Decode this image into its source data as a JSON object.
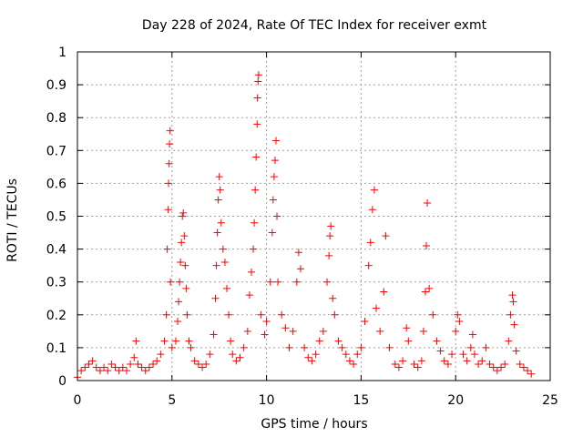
{
  "chart_data": {
    "type": "scatter",
    "title": "Day 228 of 2024, Rate Of TEC Index for receiver exmt",
    "xlabel": "GPS time / hours",
    "ylabel": "ROTI / TECUs",
    "xlim": [
      0,
      25
    ],
    "ylim": [
      0,
      1
    ],
    "xticks": [
      "0",
      "5",
      "10",
      "15",
      "20",
      "25"
    ],
    "yticks": [
      "0",
      "0.1",
      "0.2",
      "0.3",
      "0.4",
      "0.5",
      "0.6",
      "0.7",
      "0.8",
      "0.9",
      "1"
    ],
    "grid": true,
    "marker": "+",
    "series": [
      {
        "color": "#ff0000",
        "points": [
          [
            0.0,
            0.01
          ],
          [
            0.2,
            0.03
          ],
          [
            0.4,
            0.04
          ],
          [
            0.6,
            0.05
          ],
          [
            0.8,
            0.06
          ],
          [
            1.0,
            0.04
          ],
          [
            1.2,
            0.03
          ],
          [
            1.4,
            0.04
          ],
          [
            1.6,
            0.03
          ],
          [
            1.8,
            0.05
          ],
          [
            2.0,
            0.04
          ],
          [
            2.2,
            0.03
          ],
          [
            2.4,
            0.04
          ],
          [
            2.6,
            0.03
          ],
          [
            2.8,
            0.05
          ],
          [
            3.0,
            0.07
          ],
          [
            3.1,
            0.12
          ],
          [
            3.2,
            0.05
          ],
          [
            3.4,
            0.04
          ],
          [
            3.6,
            0.03
          ],
          [
            3.8,
            0.04
          ],
          [
            4.0,
            0.05
          ],
          [
            4.2,
            0.06
          ],
          [
            4.4,
            0.08
          ],
          [
            4.6,
            0.12
          ],
          [
            4.7,
            0.2
          ],
          [
            4.75,
            0.4
          ],
          [
            4.8,
            0.52
          ],
          [
            4.82,
            0.6
          ],
          [
            4.85,
            0.66
          ],
          [
            4.87,
            0.72
          ],
          [
            4.9,
            0.76
          ],
          [
            4.92,
            0.3
          ],
          [
            5.0,
            0.1
          ],
          [
            5.2,
            0.12
          ],
          [
            5.3,
            0.18
          ],
          [
            5.35,
            0.24
          ],
          [
            5.4,
            0.3
          ],
          [
            5.45,
            0.36
          ],
          [
            5.5,
            0.42
          ],
          [
            5.55,
            0.5
          ],
          [
            5.6,
            0.51
          ],
          [
            5.65,
            0.44
          ],
          [
            5.7,
            0.35
          ],
          [
            5.75,
            0.28
          ],
          [
            5.8,
            0.2
          ],
          [
            5.9,
            0.12
          ],
          [
            6.0,
            0.1
          ],
          [
            6.2,
            0.06
          ],
          [
            6.4,
            0.05
          ],
          [
            6.6,
            0.04
          ],
          [
            6.8,
            0.05
          ],
          [
            7.0,
            0.08
          ],
          [
            7.2,
            0.14
          ],
          [
            7.3,
            0.25
          ],
          [
            7.35,
            0.35
          ],
          [
            7.4,
            0.45
          ],
          [
            7.45,
            0.55
          ],
          [
            7.5,
            0.62
          ],
          [
            7.55,
            0.58
          ],
          [
            7.6,
            0.48
          ],
          [
            7.7,
            0.4
          ],
          [
            7.8,
            0.36
          ],
          [
            7.9,
            0.28
          ],
          [
            8.0,
            0.2
          ],
          [
            8.1,
            0.12
          ],
          [
            8.2,
            0.08
          ],
          [
            8.4,
            0.06
          ],
          [
            8.6,
            0.07
          ],
          [
            8.8,
            0.1
          ],
          [
            9.0,
            0.15
          ],
          [
            9.1,
            0.26
          ],
          [
            9.2,
            0.33
          ],
          [
            9.3,
            0.4
          ],
          [
            9.35,
            0.48
          ],
          [
            9.4,
            0.58
          ],
          [
            9.45,
            0.68
          ],
          [
            9.5,
            0.78
          ],
          [
            9.52,
            0.86
          ],
          [
            9.55,
            0.91
          ],
          [
            9.58,
            0.93
          ],
          [
            9.7,
            0.2
          ],
          [
            9.9,
            0.14
          ],
          [
            10.0,
            0.18
          ],
          [
            10.2,
            0.3
          ],
          [
            10.3,
            0.45
          ],
          [
            10.35,
            0.55
          ],
          [
            10.4,
            0.62
          ],
          [
            10.45,
            0.67
          ],
          [
            10.5,
            0.73
          ],
          [
            10.55,
            0.5
          ],
          [
            10.6,
            0.3
          ],
          [
            10.8,
            0.2
          ],
          [
            11.0,
            0.16
          ],
          [
            11.2,
            0.1
          ],
          [
            11.4,
            0.15
          ],
          [
            11.6,
            0.3
          ],
          [
            11.7,
            0.39
          ],
          [
            11.8,
            0.34
          ],
          [
            12.0,
            0.1
          ],
          [
            12.2,
            0.07
          ],
          [
            12.4,
            0.06
          ],
          [
            12.6,
            0.08
          ],
          [
            12.8,
            0.12
          ],
          [
            13.0,
            0.15
          ],
          [
            13.2,
            0.3
          ],
          [
            13.3,
            0.38
          ],
          [
            13.35,
            0.44
          ],
          [
            13.4,
            0.47
          ],
          [
            13.5,
            0.25
          ],
          [
            13.6,
            0.2
          ],
          [
            13.8,
            0.12
          ],
          [
            14.0,
            0.1
          ],
          [
            14.2,
            0.08
          ],
          [
            14.4,
            0.06
          ],
          [
            14.6,
            0.05
          ],
          [
            14.8,
            0.08
          ],
          [
            15.0,
            0.1
          ],
          [
            15.2,
            0.18
          ],
          [
            15.4,
            0.35
          ],
          [
            15.5,
            0.42
          ],
          [
            15.6,
            0.52
          ],
          [
            15.7,
            0.58
          ],
          [
            15.8,
            0.22
          ],
          [
            16.0,
            0.15
          ],
          [
            16.2,
            0.27
          ],
          [
            16.3,
            0.44
          ],
          [
            16.5,
            0.1
          ],
          [
            16.8,
            0.05
          ],
          [
            17.0,
            0.04
          ],
          [
            17.2,
            0.06
          ],
          [
            17.4,
            0.16
          ],
          [
            17.5,
            0.12
          ],
          [
            17.8,
            0.05
          ],
          [
            18.0,
            0.04
          ],
          [
            18.2,
            0.06
          ],
          [
            18.3,
            0.15
          ],
          [
            18.4,
            0.27
          ],
          [
            18.45,
            0.41
          ],
          [
            18.5,
            0.54
          ],
          [
            18.6,
            0.28
          ],
          [
            18.8,
            0.2
          ],
          [
            19.0,
            0.12
          ],
          [
            19.2,
            0.09
          ],
          [
            19.4,
            0.06
          ],
          [
            19.6,
            0.05
          ],
          [
            19.8,
            0.08
          ],
          [
            20.0,
            0.15
          ],
          [
            20.1,
            0.2
          ],
          [
            20.2,
            0.18
          ],
          [
            20.4,
            0.08
          ],
          [
            20.6,
            0.06
          ],
          [
            20.8,
            0.1
          ],
          [
            20.9,
            0.14
          ],
          [
            21.0,
            0.08
          ],
          [
            21.2,
            0.05
          ],
          [
            21.4,
            0.06
          ],
          [
            21.6,
            0.1
          ],
          [
            21.8,
            0.05
          ],
          [
            22.0,
            0.04
          ],
          [
            22.2,
            0.03
          ],
          [
            22.4,
            0.04
          ],
          [
            22.6,
            0.05
          ],
          [
            22.8,
            0.12
          ],
          [
            22.9,
            0.2
          ],
          [
            23.0,
            0.26
          ],
          [
            23.05,
            0.24
          ],
          [
            23.1,
            0.17
          ],
          [
            23.2,
            0.09
          ],
          [
            23.4,
            0.05
          ],
          [
            23.6,
            0.04
          ],
          [
            23.8,
            0.03
          ],
          [
            24.0,
            0.02
          ]
        ]
      }
    ]
  }
}
